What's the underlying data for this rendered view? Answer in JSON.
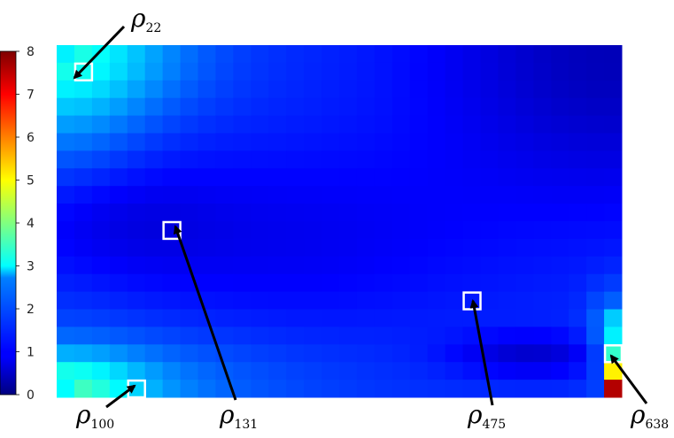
{
  "chart_data": {
    "type": "heatmap",
    "title": "",
    "xlabel": "",
    "ylabel": "",
    "rows": 20,
    "cols": 32,
    "colormap": "jet",
    "vmin": 0,
    "vmax": 8,
    "colorbar": {
      "ticks": [
        "0",
        "1",
        "2",
        "3",
        "4",
        "5",
        "6",
        "7",
        "8"
      ],
      "placement": "left"
    },
    "field": {
      "description_values": "smoothly varying density, mostly 0.4-2.5",
      "hot_cells": [
        {
          "row": 19,
          "col": 31,
          "value": 7.6
        },
        {
          "row": 18,
          "col": 31,
          "value": 5.1
        },
        {
          "row": 17,
          "col": 31,
          "value": 3.4
        },
        {
          "row": 16,
          "col": 31,
          "value": 2.9
        },
        {
          "row": 15,
          "col": 31,
          "value": 2.6
        },
        {
          "row": 0,
          "col": 0,
          "value": 2.9
        },
        {
          "row": 19,
          "col": 0,
          "value": 3.0
        }
      ]
    },
    "annotations": [
      {
        "symbol": "ρ",
        "sub": "22",
        "row": 1,
        "col": 1
      },
      {
        "symbol": "ρ",
        "sub": "100",
        "row": 19,
        "col": 4
      },
      {
        "symbol": "ρ",
        "sub": "131",
        "row": 10,
        "col": 6
      },
      {
        "symbol": "ρ",
        "sub": "475",
        "row": 14,
        "col": 23
      },
      {
        "symbol": "ρ",
        "sub": "638",
        "row": 17,
        "col": 31
      }
    ]
  }
}
